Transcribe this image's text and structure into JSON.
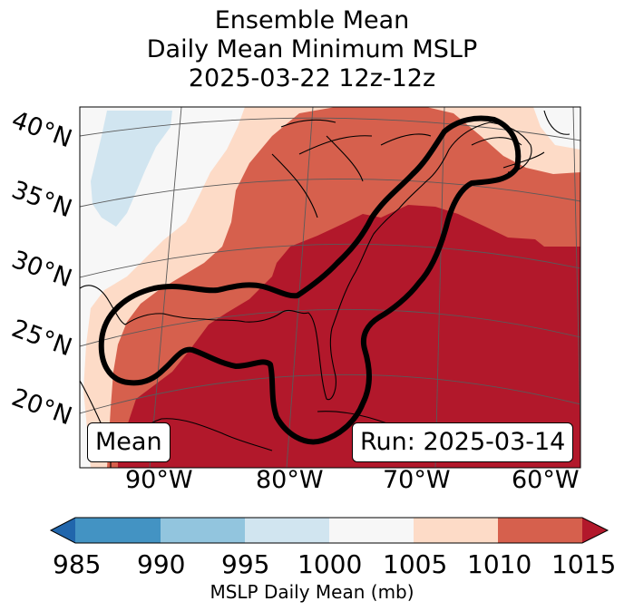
{
  "title": {
    "line1": "Ensemble Mean",
    "line2": "Daily Mean Minimum MSLP",
    "line3": "2025-03-22 12z-12z"
  },
  "map": {
    "lat_labels": [
      "40°N",
      "35°N",
      "30°N",
      "25°N",
      "20°N"
    ],
    "lon_labels": [
      "90°W",
      "80°W",
      "70°W",
      "60°W"
    ],
    "mean_box": "Mean",
    "run_box": "Run: 2025-03-14"
  },
  "colorbar": {
    "ticks": [
      "985",
      "990",
      "995",
      "1000",
      "1005",
      "1010",
      "1015"
    ],
    "label": "MSLP Daily Mean (mb)",
    "colors": {
      "under": "#2166ac",
      "985_990": "#4393c3",
      "990_995": "#92c5de",
      "995_1000": "#d1e5f0",
      "1000_1005": "#f7f7f7",
      "1005_1010": "#fddbc7",
      "1010_1015": "#d6604d",
      "over": "#b2182b"
    }
  }
}
